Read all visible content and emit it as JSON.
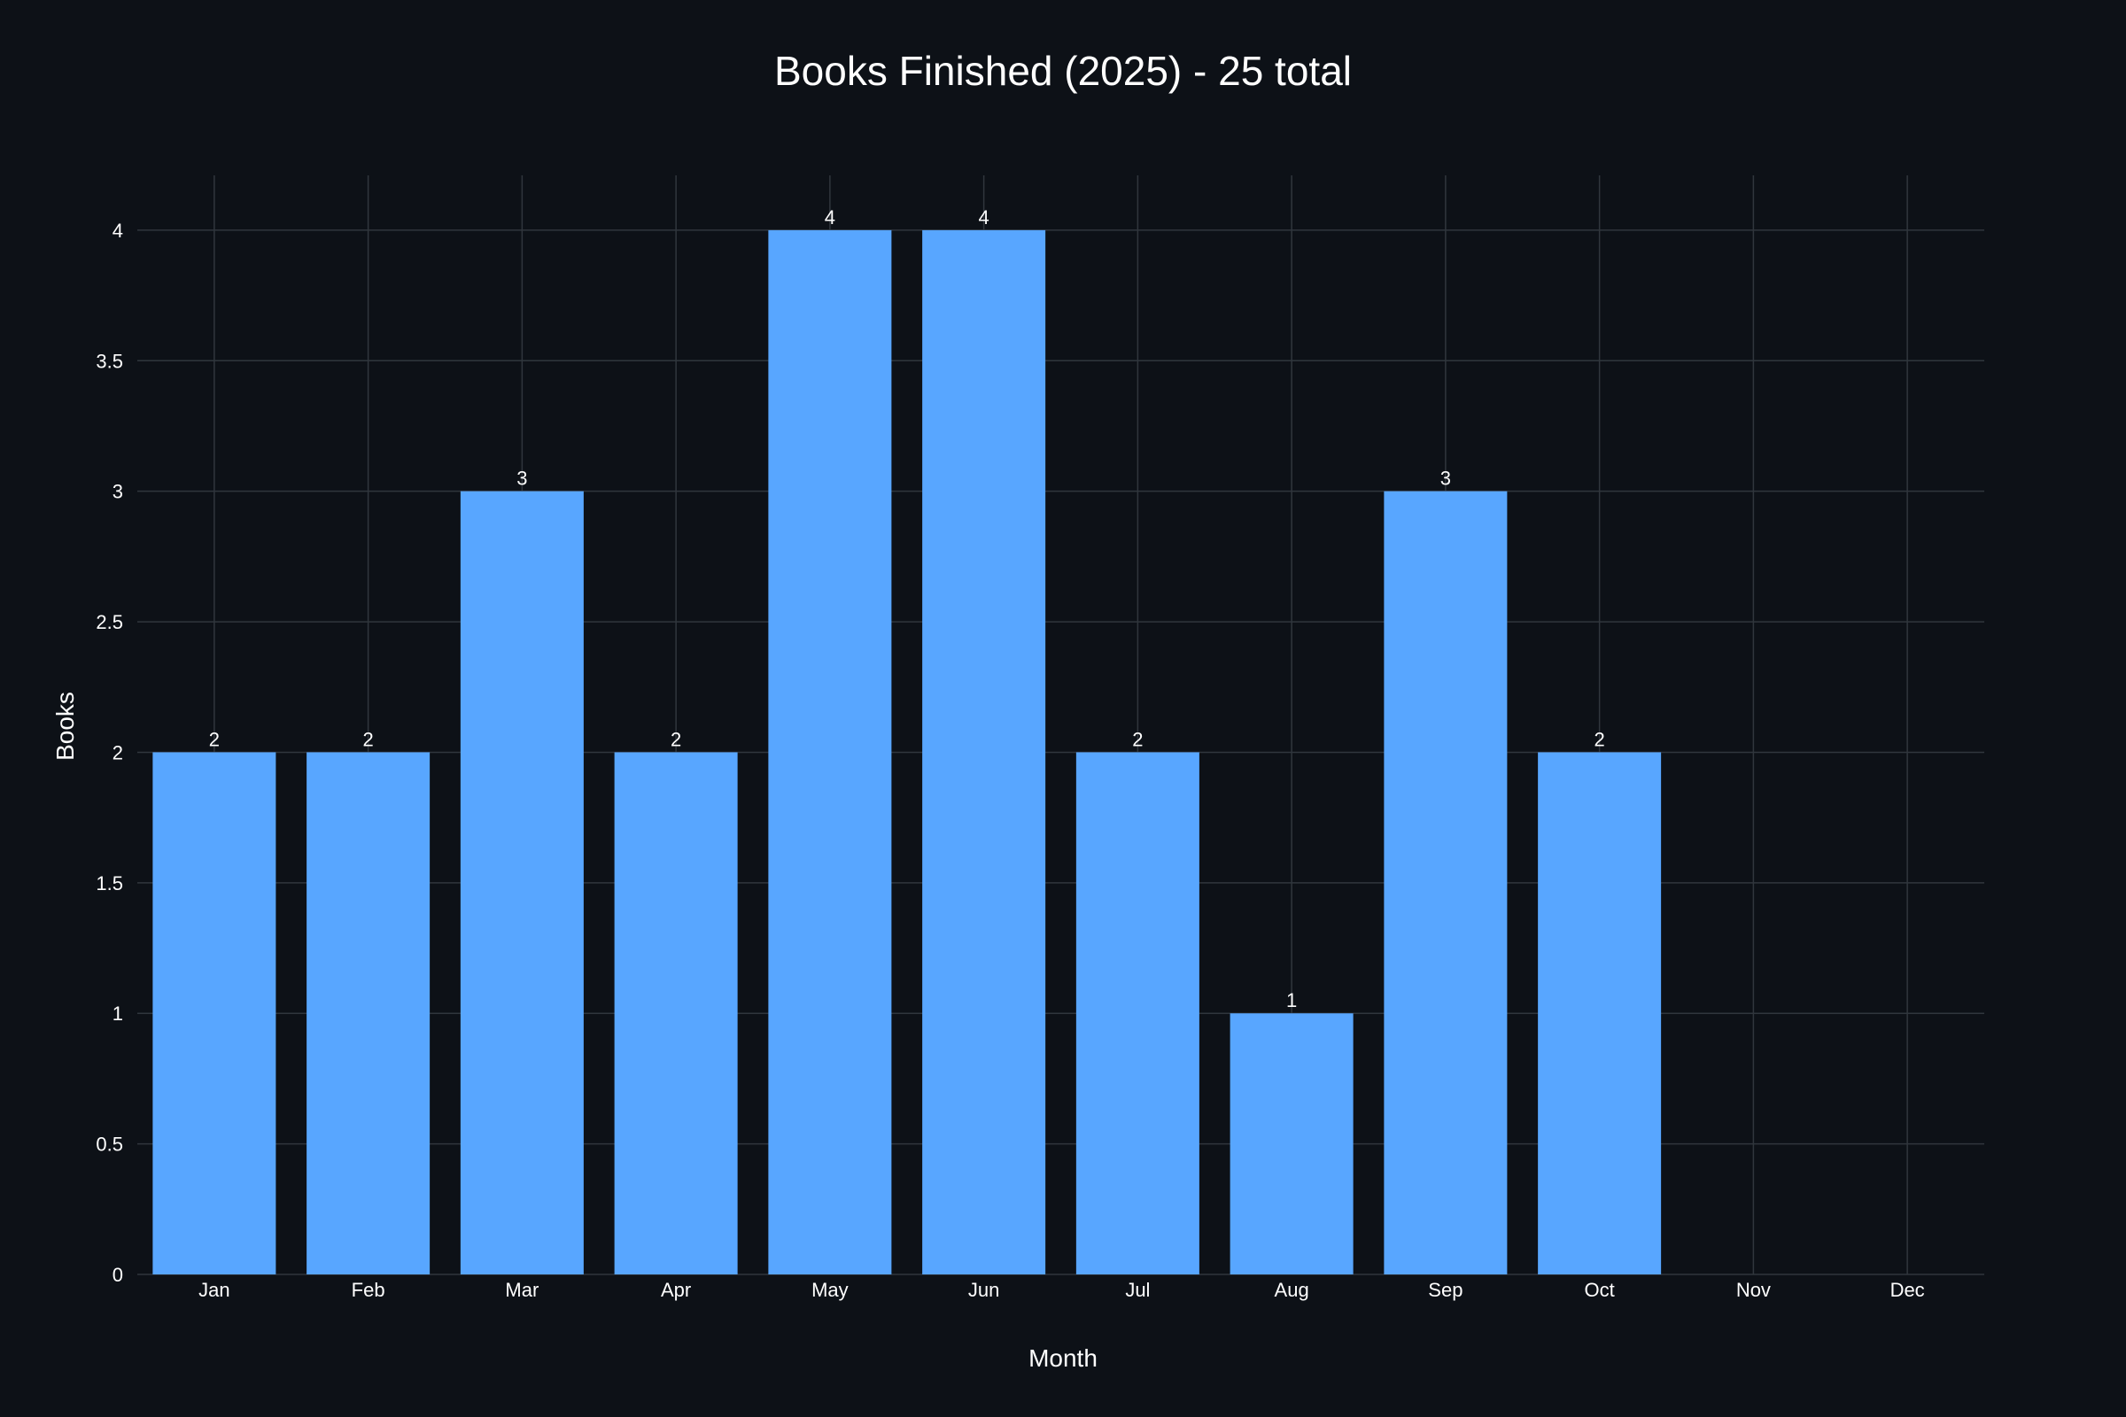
{
  "colors": {
    "background": "#0d1117",
    "bar": "#58a6ff",
    "grid": "#30363d",
    "text": "#ffffff"
  },
  "chart_data": {
    "type": "bar",
    "title": "Books Finished (2025) - 25 total",
    "xlabel": "Month",
    "ylabel": "Books",
    "categories": [
      "Jan",
      "Feb",
      "Mar",
      "Apr",
      "May",
      "Jun",
      "Jul",
      "Aug",
      "Sep",
      "Oct",
      "Nov",
      "Dec"
    ],
    "values": [
      2,
      2,
      3,
      2,
      4,
      4,
      2,
      1,
      3,
      2,
      0,
      0
    ],
    "data_labels": [
      "2",
      "2",
      "3",
      "2",
      "4",
      "4",
      "2",
      "1",
      "3",
      "2",
      "",
      ""
    ],
    "yticks": [
      0,
      0.5,
      1,
      1.5,
      2,
      2.5,
      3,
      3.5,
      4
    ],
    "ytick_labels": [
      "0",
      "0.5",
      "1",
      "1.5",
      "2",
      "2.5",
      "3",
      "3.5",
      "4"
    ],
    "ylim": [
      0,
      4.21
    ],
    "grid": true,
    "legend": "none"
  }
}
